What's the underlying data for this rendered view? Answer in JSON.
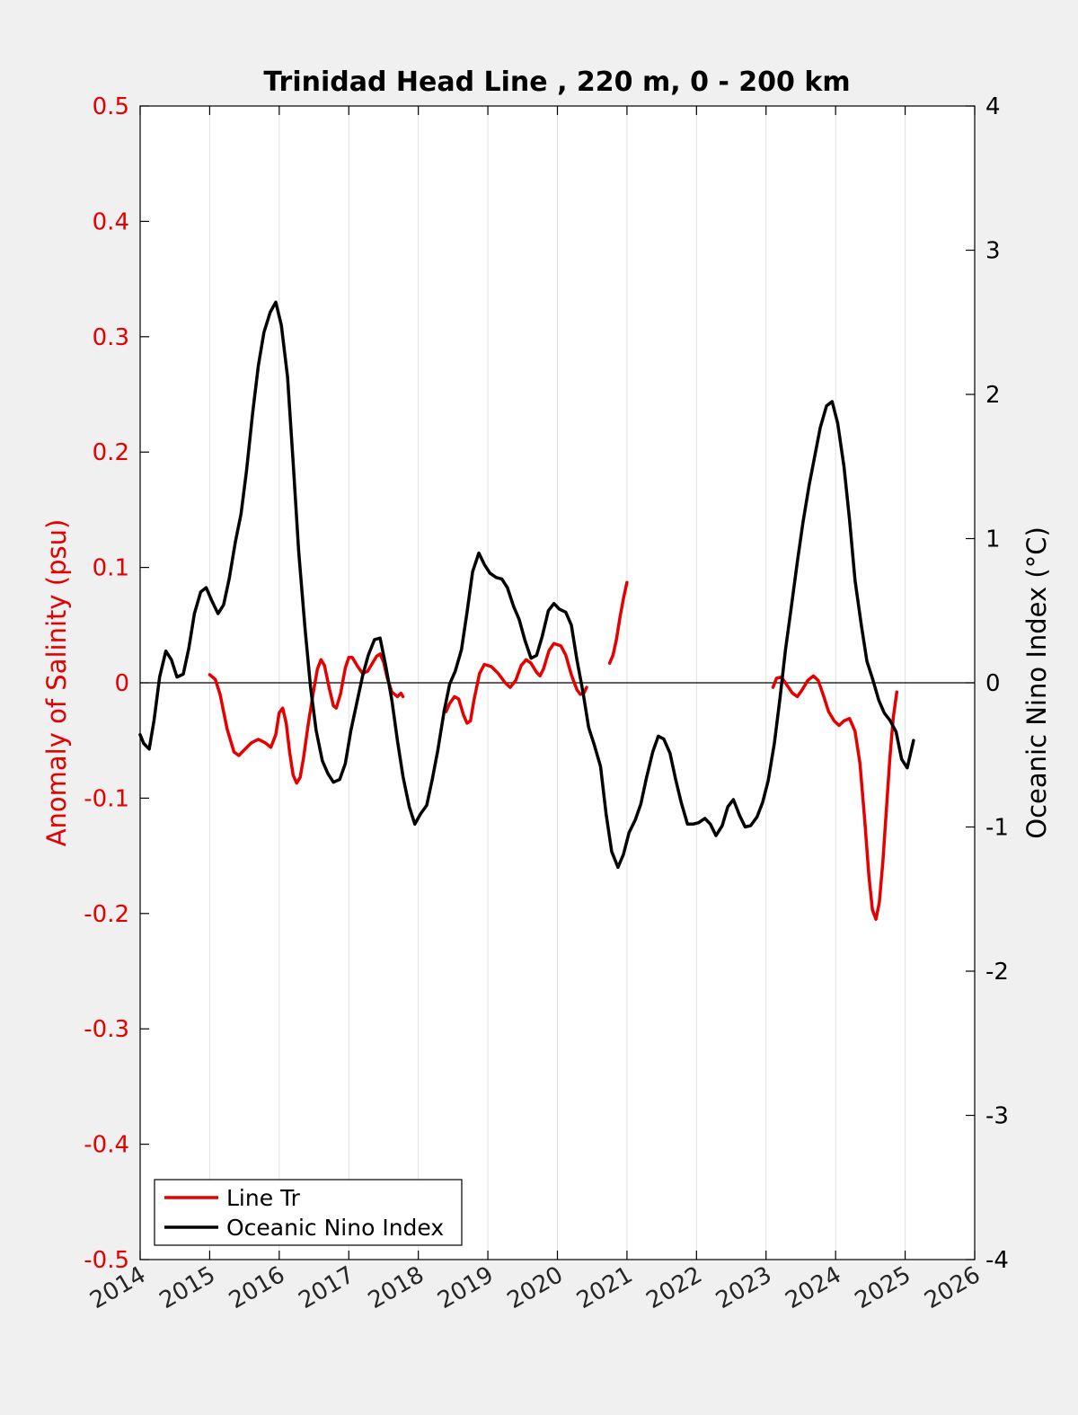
{
  "chart_data": {
    "type": "line",
    "title": "Trinidad Head Line , 220 m, 0 - 200 km",
    "xlim": [
      2014,
      2026
    ],
    "x_ticks": [
      "2014",
      "2015",
      "2016",
      "2017",
      "2018",
      "2019",
      "2020",
      "2021",
      "2022",
      "2023",
      "2024",
      "2025",
      "2026"
    ],
    "y_left": {
      "label": "Anomaly of Salinity (psu)",
      "lim": [
        -0.5,
        0.5
      ],
      "ticks": [
        "0.5",
        "0.4",
        "0.3",
        "0.2",
        "0.1",
        "0",
        "-0.1",
        "-0.2",
        "-0.3",
        "-0.4",
        "-0.5"
      ],
      "color": "#e60000"
    },
    "y_right": {
      "label": "Oceanic Nino Index (°C)",
      "lim": [
        -4,
        4
      ],
      "ticks": [
        "4",
        "3",
        "2",
        "1",
        "0",
        "-1",
        "-2",
        "-3",
        "-4"
      ],
      "color": "#000000"
    },
    "grid": "vertical",
    "legend_position": "bottom-left",
    "series": [
      {
        "name": "Line Tr",
        "axis": "left",
        "color": "#e60000",
        "segments": [
          [
            [
              2015.0,
              0.007
            ],
            [
              2015.08,
              0.003
            ],
            [
              2015.15,
              -0.01
            ],
            [
              2015.25,
              -0.04
            ],
            [
              2015.35,
              -0.06
            ],
            [
              2015.42,
              -0.063
            ],
            [
              2015.5,
              -0.058
            ],
            [
              2015.6,
              -0.052
            ],
            [
              2015.7,
              -0.049
            ],
            [
              2015.8,
              -0.052
            ],
            [
              2015.88,
              -0.056
            ],
            [
              2015.95,
              -0.045
            ],
            [
              2016.0,
              -0.026
            ],
            [
              2016.05,
              -0.022
            ],
            [
              2016.1,
              -0.035
            ],
            [
              2016.15,
              -0.06
            ],
            [
              2016.2,
              -0.08
            ],
            [
              2016.25,
              -0.087
            ],
            [
              2016.3,
              -0.082
            ],
            [
              2016.35,
              -0.065
            ],
            [
              2016.42,
              -0.035
            ],
            [
              2016.5,
              -0.005
            ],
            [
              2016.55,
              0.012
            ],
            [
              2016.6,
              0.02
            ],
            [
              2016.65,
              0.015
            ],
            [
              2016.72,
              -0.005
            ],
            [
              2016.78,
              -0.02
            ],
            [
              2016.82,
              -0.022
            ],
            [
              2016.88,
              -0.01
            ],
            [
              2016.95,
              0.013
            ],
            [
              2017.0,
              0.022
            ],
            [
              2017.05,
              0.022
            ],
            [
              2017.12,
              0.015
            ],
            [
              2017.2,
              0.008
            ],
            [
              2017.27,
              0.01
            ],
            [
              2017.33,
              0.016
            ],
            [
              2017.4,
              0.023
            ],
            [
              2017.45,
              0.025
            ],
            [
              2017.5,
              0.018
            ],
            [
              2017.55,
              0.005
            ],
            [
              2017.62,
              -0.008
            ],
            [
              2017.7,
              -0.012
            ],
            [
              2017.75,
              -0.009
            ],
            [
              2017.78,
              -0.012
            ]
          ],
          [
            [
              2018.4,
              -0.025
            ],
            [
              2018.45,
              -0.018
            ],
            [
              2018.52,
              -0.012
            ],
            [
              2018.58,
              -0.014
            ],
            [
              2018.65,
              -0.028
            ],
            [
              2018.7,
              -0.035
            ],
            [
              2018.75,
              -0.033
            ],
            [
              2018.8,
              -0.015
            ],
            [
              2018.88,
              0.008
            ],
            [
              2018.95,
              0.016
            ],
            [
              2019.05,
              0.014
            ],
            [
              2019.15,
              0.008
            ],
            [
              2019.25,
              0.0
            ],
            [
              2019.32,
              -0.004
            ],
            [
              2019.4,
              0.002
            ],
            [
              2019.48,
              0.015
            ],
            [
              2019.55,
              0.02
            ],
            [
              2019.62,
              0.017
            ],
            [
              2019.7,
              0.009
            ],
            [
              2019.75,
              0.006
            ],
            [
              2019.8,
              0.012
            ],
            [
              2019.88,
              0.028
            ],
            [
              2019.95,
              0.034
            ],
            [
              2020.05,
              0.032
            ],
            [
              2020.12,
              0.024
            ],
            [
              2020.2,
              0.007
            ],
            [
              2020.28,
              -0.006
            ],
            [
              2020.33,
              -0.01
            ],
            [
              2020.38,
              -0.009
            ],
            [
              2020.42,
              -0.004
            ]
          ],
          [
            [
              2020.75,
              0.017
            ],
            [
              2020.8,
              0.024
            ],
            [
              2020.85,
              0.038
            ],
            [
              2020.9,
              0.057
            ],
            [
              2020.95,
              0.073
            ],
            [
              2021.0,
              0.087
            ]
          ],
          [
            [
              2023.1,
              -0.004
            ],
            [
              2023.15,
              0.004
            ],
            [
              2023.22,
              0.005
            ],
            [
              2023.3,
              -0.002
            ],
            [
              2023.38,
              -0.009
            ],
            [
              2023.45,
              -0.012
            ],
            [
              2023.52,
              -0.006
            ],
            [
              2023.6,
              0.002
            ],
            [
              2023.68,
              0.006
            ],
            [
              2023.75,
              0.002
            ],
            [
              2023.82,
              -0.01
            ],
            [
              2023.9,
              -0.025
            ],
            [
              2023.98,
              -0.033
            ],
            [
              2024.05,
              -0.037
            ],
            [
              2024.12,
              -0.033
            ],
            [
              2024.2,
              -0.031
            ],
            [
              2024.28,
              -0.042
            ],
            [
              2024.35,
              -0.07
            ],
            [
              2024.42,
              -0.12
            ],
            [
              2024.48,
              -0.168
            ],
            [
              2024.53,
              -0.197
            ],
            [
              2024.58,
              -0.205
            ],
            [
              2024.63,
              -0.19
            ],
            [
              2024.68,
              -0.155
            ],
            [
              2024.73,
              -0.11
            ],
            [
              2024.78,
              -0.065
            ],
            [
              2024.83,
              -0.03
            ],
            [
              2024.88,
              -0.008
            ]
          ]
        ]
      },
      {
        "name": "Oceanic Nino Index",
        "axis": "right",
        "color": "#000000",
        "segments": [
          [
            [
              2014.0,
              -0.36
            ],
            [
              2014.05,
              -0.42
            ],
            [
              2014.13,
              -0.46
            ],
            [
              2014.2,
              -0.26
            ],
            [
              2014.28,
              0.04
            ],
            [
              2014.37,
              0.22
            ],
            [
              2014.45,
              0.16
            ],
            [
              2014.53,
              0.04
            ],
            [
              2014.62,
              0.06
            ],
            [
              2014.7,
              0.24
            ],
            [
              2014.78,
              0.48
            ],
            [
              2014.87,
              0.63
            ],
            [
              2014.95,
              0.66
            ],
            [
              2015.03,
              0.57
            ],
            [
              2015.12,
              0.48
            ],
            [
              2015.2,
              0.54
            ],
            [
              2015.28,
              0.72
            ],
            [
              2015.37,
              0.98
            ],
            [
              2015.45,
              1.17
            ],
            [
              2015.53,
              1.47
            ],
            [
              2015.62,
              1.88
            ],
            [
              2015.7,
              2.2
            ],
            [
              2015.78,
              2.43
            ],
            [
              2015.87,
              2.57
            ],
            [
              2015.95,
              2.64
            ],
            [
              2016.03,
              2.48
            ],
            [
              2016.12,
              2.12
            ],
            [
              2016.2,
              1.53
            ],
            [
              2016.28,
              0.91
            ],
            [
              2016.37,
              0.38
            ],
            [
              2016.45,
              -0.03
            ],
            [
              2016.53,
              -0.33
            ],
            [
              2016.62,
              -0.54
            ],
            [
              2016.7,
              -0.63
            ],
            [
              2016.78,
              -0.69
            ],
            [
              2016.87,
              -0.67
            ],
            [
              2016.95,
              -0.56
            ],
            [
              2017.03,
              -0.33
            ],
            [
              2017.12,
              -0.13
            ],
            [
              2017.2,
              0.05
            ],
            [
              2017.28,
              0.19
            ],
            [
              2017.37,
              0.3
            ],
            [
              2017.45,
              0.31
            ],
            [
              2017.53,
              0.12
            ],
            [
              2017.62,
              -0.12
            ],
            [
              2017.7,
              -0.4
            ],
            [
              2017.78,
              -0.65
            ],
            [
              2017.87,
              -0.86
            ],
            [
              2017.95,
              -0.98
            ],
            [
              2018.03,
              -0.91
            ],
            [
              2018.12,
              -0.85
            ],
            [
              2018.2,
              -0.67
            ],
            [
              2018.28,
              -0.47
            ],
            [
              2018.37,
              -0.2
            ],
            [
              2018.45,
              -0.01
            ],
            [
              2018.53,
              0.08
            ],
            [
              2018.62,
              0.23
            ],
            [
              2018.7,
              0.49
            ],
            [
              2018.78,
              0.77
            ],
            [
              2018.87,
              0.9
            ],
            [
              2018.95,
              0.82
            ],
            [
              2019.03,
              0.76
            ],
            [
              2019.12,
              0.73
            ],
            [
              2019.2,
              0.72
            ],
            [
              2019.28,
              0.66
            ],
            [
              2019.37,
              0.53
            ],
            [
              2019.45,
              0.44
            ],
            [
              2019.53,
              0.3
            ],
            [
              2019.62,
              0.17
            ],
            [
              2019.7,
              0.19
            ],
            [
              2019.78,
              0.32
            ],
            [
              2019.87,
              0.5
            ],
            [
              2019.95,
              0.55
            ],
            [
              2020.03,
              0.51
            ],
            [
              2020.12,
              0.49
            ],
            [
              2020.2,
              0.4
            ],
            [
              2020.28,
              0.16
            ],
            [
              2020.37,
              -0.07
            ],
            [
              2020.45,
              -0.31
            ],
            [
              2020.53,
              -0.43
            ],
            [
              2020.62,
              -0.58
            ],
            [
              2020.7,
              -0.91
            ],
            [
              2020.78,
              -1.17
            ],
            [
              2020.87,
              -1.28
            ],
            [
              2020.95,
              -1.19
            ],
            [
              2021.03,
              -1.04
            ],
            [
              2021.12,
              -0.95
            ],
            [
              2021.2,
              -0.84
            ],
            [
              2021.28,
              -0.66
            ],
            [
              2021.37,
              -0.48
            ],
            [
              2021.45,
              -0.37
            ],
            [
              2021.53,
              -0.39
            ],
            [
              2021.62,
              -0.49
            ],
            [
              2021.7,
              -0.67
            ],
            [
              2021.78,
              -0.83
            ],
            [
              2021.87,
              -0.98
            ],
            [
              2021.95,
              -0.98
            ],
            [
              2022.03,
              -0.97
            ],
            [
              2022.12,
              -0.94
            ],
            [
              2022.2,
              -0.98
            ],
            [
              2022.28,
              -1.06
            ],
            [
              2022.37,
              -0.99
            ],
            [
              2022.45,
              -0.86
            ],
            [
              2022.53,
              -0.81
            ],
            [
              2022.62,
              -0.92
            ],
            [
              2022.7,
              -1.0
            ],
            [
              2022.78,
              -0.99
            ],
            [
              2022.87,
              -0.93
            ],
            [
              2022.95,
              -0.83
            ],
            [
              2023.03,
              -0.68
            ],
            [
              2023.12,
              -0.42
            ],
            [
              2023.2,
              -0.11
            ],
            [
              2023.28,
              0.23
            ],
            [
              2023.37,
              0.55
            ],
            [
              2023.45,
              0.84
            ],
            [
              2023.53,
              1.11
            ],
            [
              2023.62,
              1.37
            ],
            [
              2023.7,
              1.57
            ],
            [
              2023.78,
              1.77
            ],
            [
              2023.87,
              1.92
            ],
            [
              2023.95,
              1.95
            ],
            [
              2024.03,
              1.8
            ],
            [
              2024.12,
              1.5
            ],
            [
              2024.2,
              1.13
            ],
            [
              2024.28,
              0.71
            ],
            [
              2024.37,
              0.4
            ],
            [
              2024.45,
              0.15
            ],
            [
              2024.53,
              0.03
            ],
            [
              2024.62,
              -0.12
            ],
            [
              2024.7,
              -0.21
            ],
            [
              2024.78,
              -0.26
            ],
            [
              2024.87,
              -0.34
            ],
            [
              2024.95,
              -0.53
            ],
            [
              2025.03,
              -0.59
            ],
            [
              2025.12,
              -0.4
            ]
          ]
        ]
      }
    ]
  }
}
